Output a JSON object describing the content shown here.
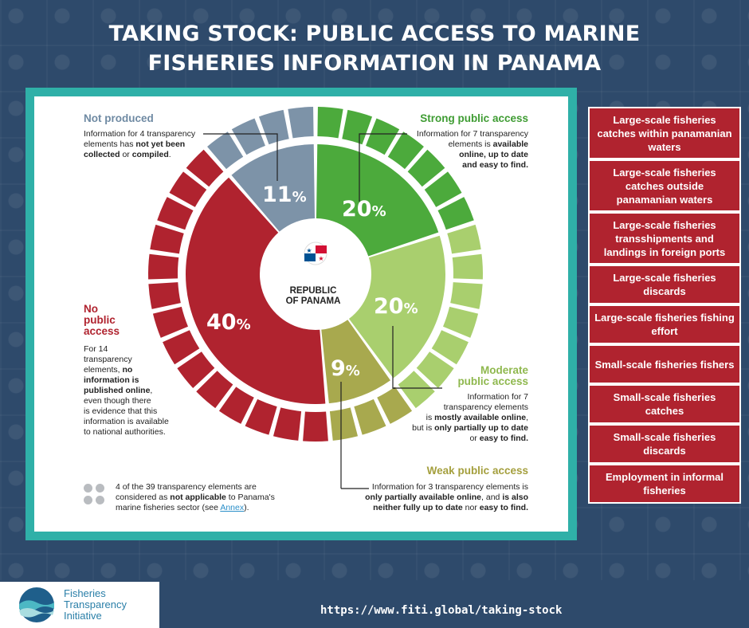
{
  "header": {
    "title_line1": "TAKING STOCK: PUBLIC ACCESS TO MARINE",
    "title_line2": "FISHERIES INFORMATION IN PANAMA"
  },
  "colors": {
    "strong": "#4caa3c",
    "moderate": "#a9cf6e",
    "weak": "#a8a94e",
    "none": "#b0232f",
    "not_produced": "#7d93a8",
    "teal": "#2fb0a8"
  },
  "chart_data": {
    "type": "pie",
    "center_label_line1": "REPUBLIC",
    "center_label_line2": "OF PANAMA",
    "slices": [
      {
        "key": "strong",
        "value": 20,
        "elements": 7,
        "label": "Strong public access",
        "pct_text": "20",
        "pct_sign": "%"
      },
      {
        "key": "moderate",
        "value": 20,
        "elements": 7,
        "label": "Moderate public access",
        "pct_text": "20",
        "pct_sign": "%"
      },
      {
        "key": "weak",
        "value": 9,
        "elements": 3,
        "label": "Weak public access",
        "pct_text": "9",
        "pct_sign": "%"
      },
      {
        "key": "none",
        "value": 40,
        "elements": 14,
        "label": "No public access",
        "pct_text": "40",
        "pct_sign": "%"
      },
      {
        "key": "not_produced",
        "value": 11,
        "elements": 4,
        "label": "Not produced",
        "pct_text": "11",
        "pct_sign": "%"
      }
    ]
  },
  "labels": {
    "not_produced": {
      "head": "Not produced",
      "t1": "Information for 4 transparency",
      "t2": "elements has ",
      "t2b": "not yet been",
      "t3b": "collected",
      "t3": " or ",
      "t3c": "compiled",
      "t3d": "."
    },
    "strong": {
      "head": "Strong public access",
      "t1": "Information for 7 transparency",
      "t2": "elements is ",
      "t2b": "available",
      "t3b": "online, up to date",
      "t4b": "and easy to find."
    },
    "no_access": {
      "head1": "No",
      "head2": "public",
      "head3": "access",
      "t1": "For 14",
      "t2": "transparency",
      "t3": "elements, ",
      "t3b": "no",
      "t4b": "information is",
      "t5b": "published online",
      "t5": ",",
      "t6": "even though there",
      "t7": "is evidence that this",
      "t8": "information is available",
      "t9": "to national authorities."
    },
    "moderate": {
      "head1": "Moderate",
      "head2": "public access",
      "t1": "Information for 7",
      "t2": "transparency elements",
      "t3": "is ",
      "t3b": "mostly available online",
      "t3c": ",",
      "t4": "but is ",
      "t4b": "only partially up to date",
      "t5": "or ",
      "t5b": "easy to find."
    },
    "weak": {
      "head": "Weak public access",
      "t1": "Information for 3 transparency elements is",
      "t2b": "only partially available online",
      "t2": ", and ",
      "t2c": "is also",
      "t3b": "neither fully up to date",
      "t3": " nor ",
      "t3c": "easy to find."
    },
    "not_applicable": {
      "t1": "4 of the 39 transparency elements are",
      "t2": "considered as ",
      "t2b": "not applicable",
      "t2c": " to Panama's",
      "t3": "marine fisheries sector (see ",
      "t3link": "Annex",
      "t3c": ")."
    }
  },
  "side_list": [
    "Large-scale fisheries catches within panamanian waters",
    "Large-scale fisheries catches outside panamanian waters",
    "Large-scale fisheries transshipments and landings in foreign ports",
    "Large-scale fisheries discards",
    "Large-scale fisheries fishing effort",
    "Small-scale fisheries fishers",
    "Small-scale fisheries catches",
    "Small-scale fisheries discards",
    "Employment in informal fisheries"
  ],
  "footer": {
    "logo_line1": "Fisheries",
    "logo_line2": "Transparency",
    "logo_line3": "Initiative",
    "url": "https://www.fiti.global/taking-stock"
  }
}
